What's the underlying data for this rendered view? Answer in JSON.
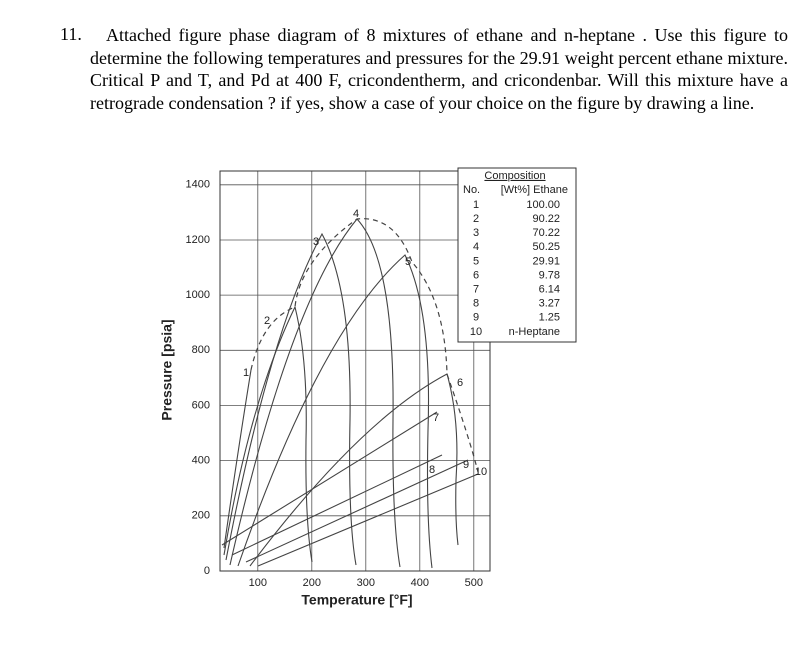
{
  "question": {
    "number": "11.",
    "text": "Attached figure phase diagram of 8 mixtures of ethane and n-heptane . Use this figure to determine the following temperatures and pressures for the 29.91 weight percent ethane mixture. Critical P and T,  and Pd at 400 F, cricondentherm, and cricondenbar. Will this mixture have a retrograde condensation ?  if yes, show a case of your choice on the figure by drawing a line."
  },
  "figure": {
    "x_label": "Temperature [°F]",
    "y_label": "Pressure [psia]",
    "xlim": [
      30,
      530
    ],
    "ylim": [
      0,
      1450
    ],
    "xticks": [
      100,
      200,
      300,
      400,
      500
    ],
    "yticks": [
      0,
      200,
      400,
      600,
      800,
      1000,
      1200,
      1400
    ],
    "curve_labels": [
      "1",
      "2",
      "3",
      "4",
      "5",
      "6",
      "7",
      "8",
      "9",
      "10"
    ],
    "legend": {
      "title": "Composition",
      "header": [
        "No.",
        "[Wt%] Ethane"
      ],
      "rows": [
        [
          "1",
          "100.00"
        ],
        [
          "2",
          "90.22"
        ],
        [
          "3",
          "70.22"
        ],
        [
          "4",
          "50.25"
        ],
        [
          "5",
          "29.91"
        ],
        [
          "6",
          "9.78"
        ],
        [
          "7",
          "6.14"
        ],
        [
          "8",
          "3.27"
        ],
        [
          "9",
          "1.25"
        ],
        [
          "10",
          "n-Heptane"
        ]
      ]
    }
  }
}
